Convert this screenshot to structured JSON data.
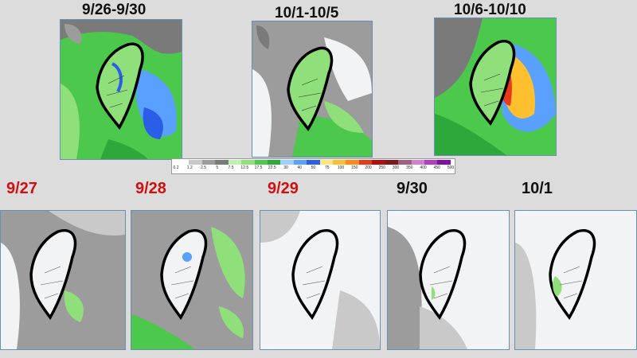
{
  "period_titles": [
    "9/26-9/30",
    "10/1-10/5",
    "10/6-10/10"
  ],
  "daily_titles": [
    {
      "label": "9/27",
      "color": "#d01010"
    },
    {
      "label": "9/28",
      "color": "#d01010"
    },
    {
      "label": "9/29",
      "color": "#d01010"
    },
    {
      "label": "9/30",
      "color": "#111111"
    },
    {
      "label": "10/1",
      "color": "#111111"
    }
  ],
  "colorbar": {
    "ticks": [
      "0.2",
      "1.2",
      "2.5",
      "5",
      "7.5",
      "12.5",
      "17.5",
      "22.5",
      "30",
      "40",
      "50",
      "75",
      "100",
      "150",
      "200",
      "250",
      "300",
      "350",
      "400",
      "450",
      "500"
    ],
    "colors": [
      "#ffffff",
      "#c9c9c9",
      "#9c9c9c",
      "#7a7a7a",
      "#bff0b0",
      "#8fe07a",
      "#4cc84c",
      "#2ea83a",
      "#9ad0ff",
      "#5aa0ff",
      "#2a5ee8",
      "#ffe680",
      "#ffc030",
      "#ff8a1a",
      "#e83a1a",
      "#b01010",
      "#801818",
      "#a06080",
      "#d080d0",
      "#b040c0",
      "#8010a0"
    ]
  },
  "colors": {
    "background": "#dcdcdc",
    "panel_border": "#6a8fb5",
    "red_label": "#d01010"
  }
}
